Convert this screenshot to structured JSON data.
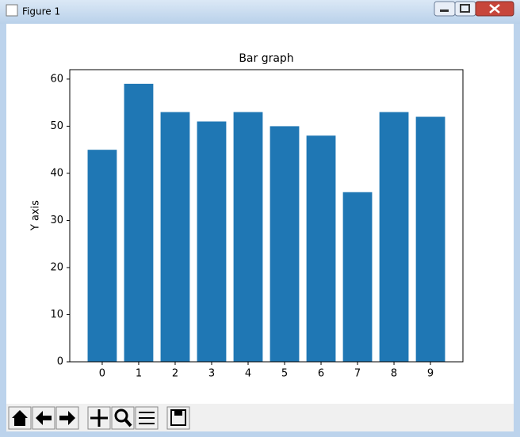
{
  "window": {
    "title": "Figure 1"
  },
  "chart_data": {
    "type": "bar",
    "title": "Bar graph",
    "y_label": "Y axis",
    "x": [
      0,
      1,
      2,
      3,
      4,
      5,
      6,
      7,
      8,
      9
    ],
    "values": [
      45,
      59,
      53,
      51,
      53,
      50,
      48,
      36,
      53,
      52
    ],
    "color": "#1f77b4",
    "xlim": [
      -0.89,
      9.89
    ],
    "xticks": [
      0,
      1,
      2,
      3,
      4,
      5,
      6,
      7,
      8,
      9
    ],
    "ylim": [
      0,
      62
    ],
    "yticks": [
      0,
      10,
      20,
      30,
      40,
      50,
      60
    ],
    "bar_width": 0.8,
    "grid": false
  }
}
